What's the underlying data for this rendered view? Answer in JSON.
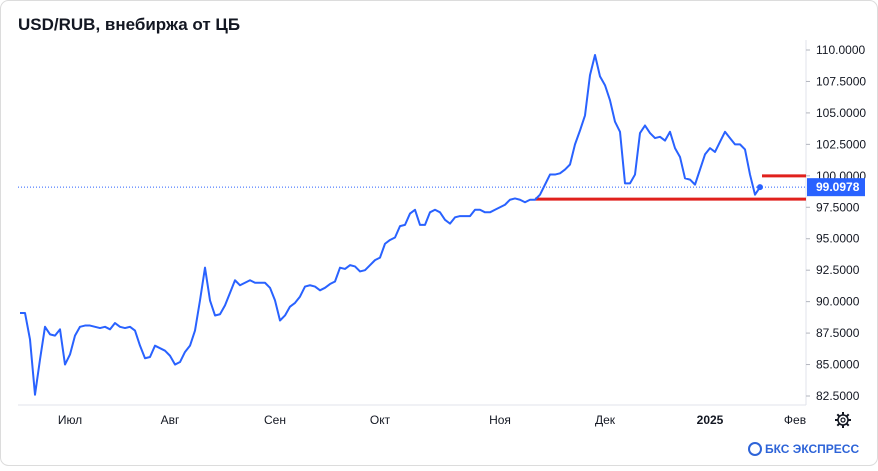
{
  "chart_data": {
    "type": "line",
    "title": "USD/RUB, внебиржа от ЦБ",
    "categories": [
      null,
      null,
      null,
      null,
      null,
      null,
      null,
      null,
      null,
      null,
      "Июл",
      null,
      null,
      null,
      null,
      null,
      null,
      null,
      null,
      null,
      null,
      null,
      null,
      null,
      null,
      null,
      null,
      null,
      null,
      null,
      "Авг",
      null,
      null,
      null,
      null,
      null,
      null,
      null,
      null,
      null,
      null,
      null,
      null,
      null,
      null,
      null,
      null,
      null,
      null,
      null,
      null,
      "Сен",
      null,
      null,
      null,
      null,
      null,
      null,
      null,
      null,
      null,
      null,
      null,
      null,
      null,
      null,
      null,
      null,
      null,
      null,
      null,
      null,
      "Окт",
      null,
      null,
      null,
      null,
      null,
      null,
      null,
      null,
      null,
      null,
      null,
      null,
      null,
      null,
      null,
      null,
      null,
      null,
      null,
      null,
      null,
      null,
      null,
      "Ноя",
      null,
      null,
      null,
      null,
      null,
      null,
      null,
      null,
      null,
      null,
      null,
      null,
      null,
      null,
      null,
      null,
      null,
      null,
      null,
      null,
      "Дек",
      null,
      null,
      null,
      null,
      null,
      null,
      null,
      null,
      null,
      null,
      null,
      null,
      null,
      null,
      null,
      null,
      null,
      null,
      null,
      null,
      "2025",
      null,
      null,
      null,
      null,
      null,
      null,
      null,
      null,
      null,
      null,
      null,
      null,
      null,
      null,
      null,
      null,
      "Фев"
    ],
    "series": [
      {
        "name": "USD/RUB",
        "color": "#2962ff",
        "values": [
          89.1,
          89.1,
          87,
          82.6,
          85.4,
          88,
          87.4,
          87.3,
          87.8,
          85,
          85.8,
          87.3,
          88,
          88.1,
          88.1,
          88,
          87.9,
          88,
          87.8,
          88.3,
          88,
          87.9,
          88,
          87.7,
          86.5,
          85.5,
          85.6,
          86.5,
          86.3,
          86.1,
          85.7,
          85,
          85.2,
          86,
          86.5,
          87.7,
          90.1,
          92.7,
          90.1,
          88.9,
          89,
          89.7,
          90.7,
          91.7,
          91.3,
          91.5,
          91.7,
          91.5,
          91.5,
          91.5,
          91.1,
          90.1,
          88.5,
          88.9,
          89.6,
          89.9,
          90.4,
          91.2,
          91.3,
          91.2,
          90.9,
          91.1,
          91.4,
          91.6,
          92.7,
          92.6,
          92.9,
          92.8,
          92.4,
          92.5,
          92.9,
          93.3,
          93.5,
          94.6,
          94.9,
          95.1,
          96,
          96.1,
          97,
          97.3,
          96.1,
          96.1,
          97.1,
          97.3,
          97.1,
          96.5,
          96.2,
          96.7,
          96.8,
          96.8,
          96.8,
          97.3,
          97.3,
          97.1,
          97.1,
          97.3,
          97.5,
          97.7,
          98.1,
          98.2,
          98.1,
          97.9,
          98.1,
          98.1,
          98.5,
          99.3,
          100.1,
          100.1,
          100.2,
          100.5,
          100.9,
          102.5,
          103.6,
          104.8,
          108,
          109.6,
          107.9,
          107.2,
          106,
          104.3,
          103.5,
          99.4,
          99.4,
          100.1,
          103.4,
          104,
          103.4,
          103,
          103.1,
          102.8,
          103.5,
          102.2,
          101.5,
          99.8,
          99.7,
          99.3,
          100.5,
          101.7,
          102.2,
          101.9,
          102.7,
          103.5,
          103,
          102.5,
          102.5,
          102.1,
          100.1,
          98.5,
          99.0978,
          null,
          null,
          null,
          null,
          null,
          null,
          null
        ],
        "value_labels": {
          "148": "99.0978"
        }
      }
    ],
    "ylim": [
      82.5,
      110
    ],
    "yticks": [
      {
        "value": 82.5,
        "label": "82.5000"
      },
      {
        "value": 85,
        "label": "85.0000"
      },
      {
        "value": 87.5,
        "label": "87.5000"
      },
      {
        "value": 90,
        "label": "90.0000"
      },
      {
        "value": 92.5,
        "label": "92.5000"
      },
      {
        "value": 95,
        "label": "95.0000"
      },
      {
        "value": 97.5,
        "label": "97.5000"
      },
      {
        "value": 100,
        "label": "100.0000"
      },
      {
        "value": 102.5,
        "label": "102.5000"
      },
      {
        "value": 105,
        "label": "105.0000"
      },
      {
        "value": 107.5,
        "label": "107.5000"
      },
      {
        "value": 110,
        "label": "110.0000"
      }
    ],
    "reference_lines": [
      {
        "value": 100,
        "color": "#e0211d"
      },
      {
        "value": 98.15,
        "color": "#e0211d"
      }
    ],
    "brand": "БКС ЭКСПРЕСС"
  }
}
